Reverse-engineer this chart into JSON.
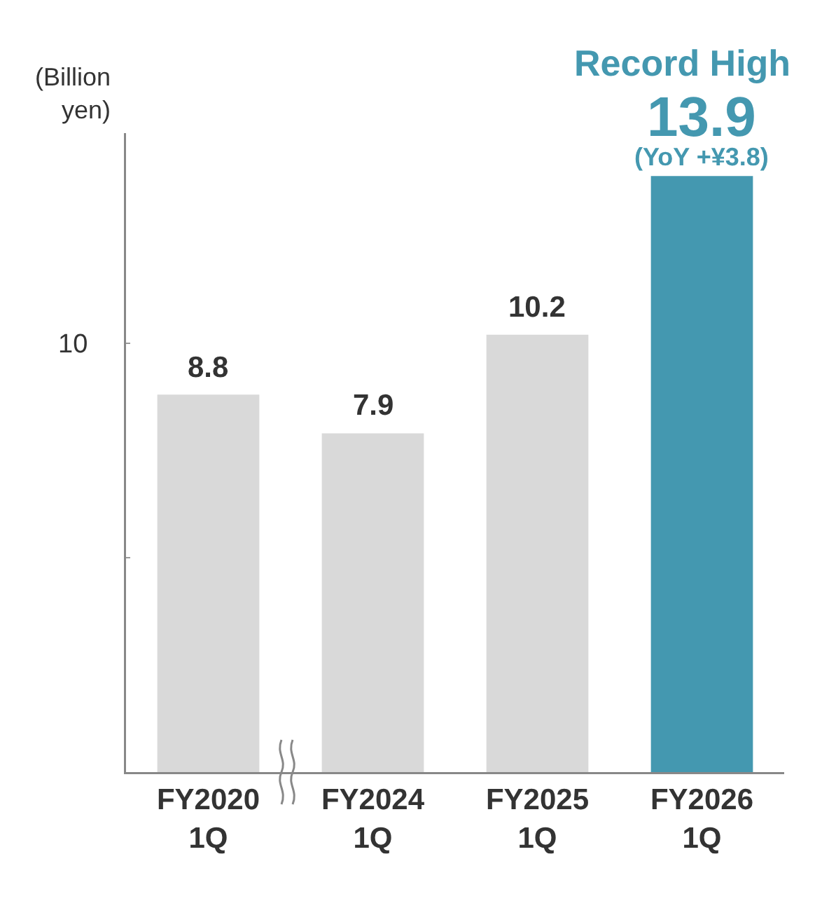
{
  "chart_data": {
    "type": "bar",
    "ylabel": "(Billion\nyen)",
    "categories": [
      "FY2020\n1Q",
      "FY2024\n1Q",
      "FY2025\n1Q",
      "FY2026\n1Q"
    ],
    "values": [
      8.8,
      7.9,
      10.2,
      13.9
    ],
    "colors": [
      "#d9d9d9",
      "#d9d9d9",
      "#d9d9d9",
      "#4498b0"
    ],
    "ylim": [
      0,
      14.9
    ],
    "yticks": [
      {
        "value": 5,
        "label": null
      },
      10
    ],
    "data_labels": true,
    "grid": false,
    "legend": false,
    "annotations": [
      {
        "text": "Record High",
        "x": "FY2026\n1Q",
        "y": 13.9
      },
      {
        "text": "(YoY +¥3.8)",
        "x": "FY2026\n1Q",
        "y": 13.9
      }
    ]
  }
}
